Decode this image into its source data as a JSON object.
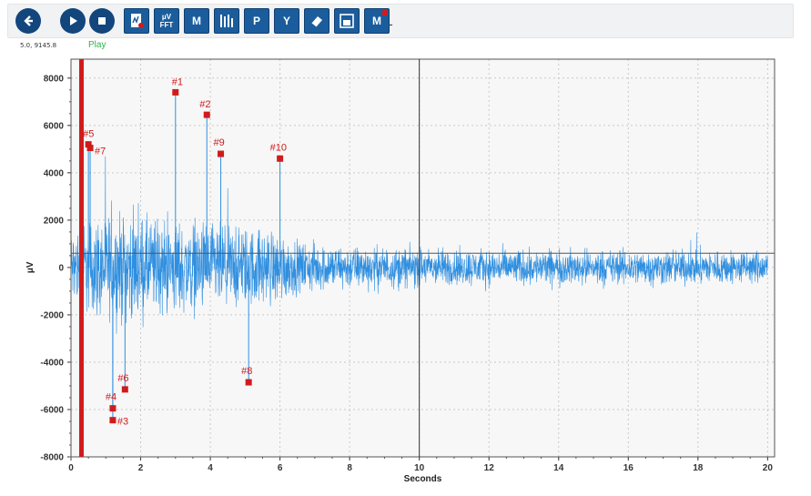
{
  "toolbar": {
    "buttons": [
      {
        "name": "back-button",
        "icon": "back-arrow-icon",
        "label": "",
        "shape": "round"
      },
      {
        "name": "play-button",
        "icon": "play-icon",
        "label": "",
        "shape": "round"
      },
      {
        "name": "stop-button",
        "icon": "stop-icon",
        "label": "",
        "shape": "round"
      },
      {
        "name": "report-button",
        "icon": "report-document-icon",
        "label": "",
        "shape": "square"
      },
      {
        "name": "fft-button",
        "icon": "fft-icon",
        "label": "μV FFT",
        "shape": "square"
      },
      {
        "name": "marker-m-button",
        "icon": "marker-icon",
        "label": "M",
        "shape": "square"
      },
      {
        "name": "channels-button",
        "icon": "channels-icon",
        "label": "",
        "shape": "square"
      },
      {
        "name": "peak-button",
        "icon": "peak-icon",
        "label": "P",
        "shape": "square"
      },
      {
        "name": "y-axis-button",
        "icon": "y-axis-icon",
        "label": "Y",
        "shape": "square"
      },
      {
        "name": "eraser-button",
        "icon": "eraser-icon",
        "label": "",
        "shape": "square"
      },
      {
        "name": "save-image-button",
        "icon": "save-image-icon",
        "label": "",
        "shape": "square"
      },
      {
        "name": "marker-list-button",
        "icon": "marker-list-icon",
        "label": "M",
        "shape": "square"
      }
    ],
    "separator": "-"
  },
  "status": {
    "coords": "5.0, 9145.8",
    "play_label": "Play",
    "play_color": "#2cb34a"
  },
  "chart_data": {
    "type": "line",
    "xlabel": "Seconds",
    "ylabel": "μV",
    "xlim": [
      0,
      20.2
    ],
    "ylim": [
      -8000,
      8800
    ],
    "xticks": [
      0,
      2,
      4,
      6,
      8,
      10,
      12,
      14,
      16,
      18,
      20
    ],
    "yticks": [
      -8000,
      -6000,
      -4000,
      -2000,
      0,
      2000,
      4000,
      6000,
      8000
    ],
    "grid": true,
    "series_color": "#2f8fe0",
    "envelope": [
      {
        "x": 0.0,
        "amp": 2200
      },
      {
        "x": 0.5,
        "amp": 2800
      },
      {
        "x": 1.0,
        "amp": 3200
      },
      {
        "x": 2.0,
        "amp": 3000
      },
      {
        "x": 3.0,
        "amp": 2800
      },
      {
        "x": 4.0,
        "amp": 2600
      },
      {
        "x": 5.0,
        "amp": 2400
      },
      {
        "x": 6.0,
        "amp": 2200
      },
      {
        "x": 6.5,
        "amp": 1500
      },
      {
        "x": 8.0,
        "amp": 1300
      },
      {
        "x": 10.0,
        "amp": 1150
      },
      {
        "x": 12.0,
        "amp": 1100
      },
      {
        "x": 14.0,
        "amp": 1050
      },
      {
        "x": 16.0,
        "amp": 1050
      },
      {
        "x": 18.0,
        "amp": 1050
      },
      {
        "x": 20.0,
        "amp": 1000
      }
    ],
    "cursor": {
      "x": 0.3,
      "color": "#d01b1b"
    },
    "crosshair": {
      "x": 10.0,
      "y": 600
    },
    "markers": [
      {
        "label": "#1",
        "x": 3.0,
        "y": 7400
      },
      {
        "label": "#2",
        "x": 3.9,
        "y": 6450
      },
      {
        "label": "#3",
        "x": 1.2,
        "y": -6450
      },
      {
        "label": "#4",
        "x": 1.2,
        "y": -5950
      },
      {
        "label": "#5",
        "x": 0.5,
        "y": 5200
      },
      {
        "label": "#6",
        "x": 1.55,
        "y": -5150
      },
      {
        "label": "#7",
        "x": 0.55,
        "y": 5050
      },
      {
        "label": "#8",
        "x": 5.1,
        "y": -4850
      },
      {
        "label": "#9",
        "x": 4.3,
        "y": 4800
      },
      {
        "label": "#10",
        "x": 6.0,
        "y": 4600
      }
    ]
  }
}
